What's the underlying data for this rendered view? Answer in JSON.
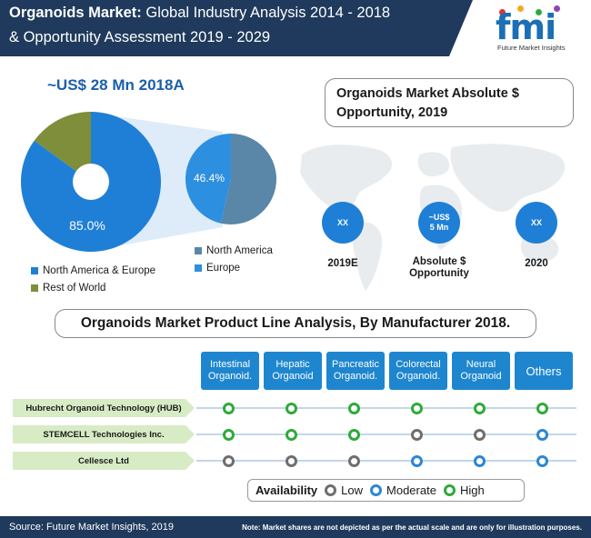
{
  "header": {
    "title_bold": "Organoids Market:",
    "title_rest": " Global Industry Analysis 2014 - 2018",
    "title_line2": "& Opportunity Assessment 2019 - 2029",
    "logo_letters": "fmi",
    "logo_sub": "Future Market Insights"
  },
  "market_size": "~US$ 28 Mn 2018A",
  "chart_data": [
    {
      "type": "pie",
      "categories": [
        "North America & Europe",
        "Rest of World"
      ],
      "values": [
        85.0,
        15.0
      ],
      "data_labels": [
        "85.0%",
        ""
      ],
      "colors": [
        "#1f7fd6",
        "#7e8e3a"
      ],
      "legend_placement": "bottom"
    },
    {
      "type": "pie",
      "categories": [
        "North America",
        "Europe"
      ],
      "values": [
        53.6,
        46.4
      ],
      "data_labels": [
        "",
        "46.4%"
      ],
      "colors": [
        "#5a86a8",
        "#2d8fe0"
      ],
      "legend_placement": "bottom-right"
    }
  ],
  "legend_main": [
    {
      "label": "North America & Europe",
      "color": "#1f7fd6"
    },
    {
      "label": "Rest of World",
      "color": "#7e8e3a"
    }
  ],
  "legend_sub": [
    {
      "label": "North America",
      "color": "#5a86a8"
    },
    {
      "label": "Europe",
      "color": "#2d8fe0"
    }
  ],
  "opportunity": {
    "title_line1": "Organoids Market Absolute $",
    "title_line2": "Opportunity, 2019",
    "circles": [
      {
        "value": "XX",
        "label": "2019E"
      },
      {
        "value_line1": "~US$",
        "value_line2": "5 Mn",
        "label_line1": "Absolute $",
        "label_line2": "Opportunity"
      },
      {
        "value": "XX",
        "label": "2020"
      }
    ]
  },
  "product_line": {
    "title": "Organoids Market Product Line Analysis,  By Manufacturer 2018.",
    "columns": [
      {
        "line1": "Intestinal",
        "line2": "Organoid."
      },
      {
        "line1": "Hepatic",
        "line2": "Organoid"
      },
      {
        "line1": "Pancreatic",
        "line2": "Organoid."
      },
      {
        "line1": "Colorectal",
        "line2": "Organoid."
      },
      {
        "line1": "Neural",
        "line2": "Organoid"
      },
      {
        "line1": "Others",
        "line2": ""
      }
    ],
    "rows": [
      {
        "name": "Hubrecht Organoid Technology (HUB)",
        "levels": [
          "high",
          "high",
          "high",
          "high",
          "high",
          "high"
        ]
      },
      {
        "name": "STEMCELL Technologies Inc.",
        "levels": [
          "high",
          "high",
          "high",
          "low",
          "low",
          "moderate"
        ]
      },
      {
        "name": "Cellesce Ltd",
        "levels": [
          "low",
          "low",
          "low",
          "moderate",
          "moderate",
          "moderate"
        ]
      }
    ]
  },
  "availability": {
    "title": "Availability",
    "low": "Low",
    "moderate": "Moderate",
    "high": "High"
  },
  "footer": {
    "source": "Source: Future Market Insights, 2019",
    "note": "Note: Market shares are not depicted as per the actual scale and are only for illustration purposes."
  }
}
